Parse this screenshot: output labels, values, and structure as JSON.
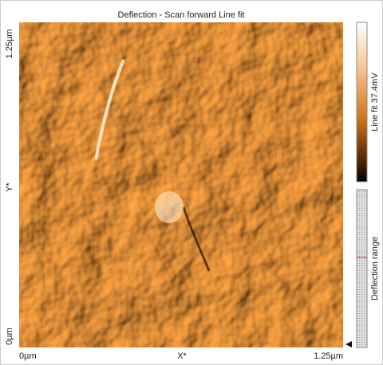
{
  "title": "Deflection - Scan forward   Line fit",
  "y_axis": {
    "top": "1.25µm",
    "label": "Y*",
    "bottom": "0µm"
  },
  "x_axis": {
    "left": "0µm",
    "label": "X*",
    "right": "1.25µm"
  },
  "colorbar": {
    "label": "Line fit 37.4mV"
  },
  "range_bar": {
    "label": "Deflection range"
  }
}
